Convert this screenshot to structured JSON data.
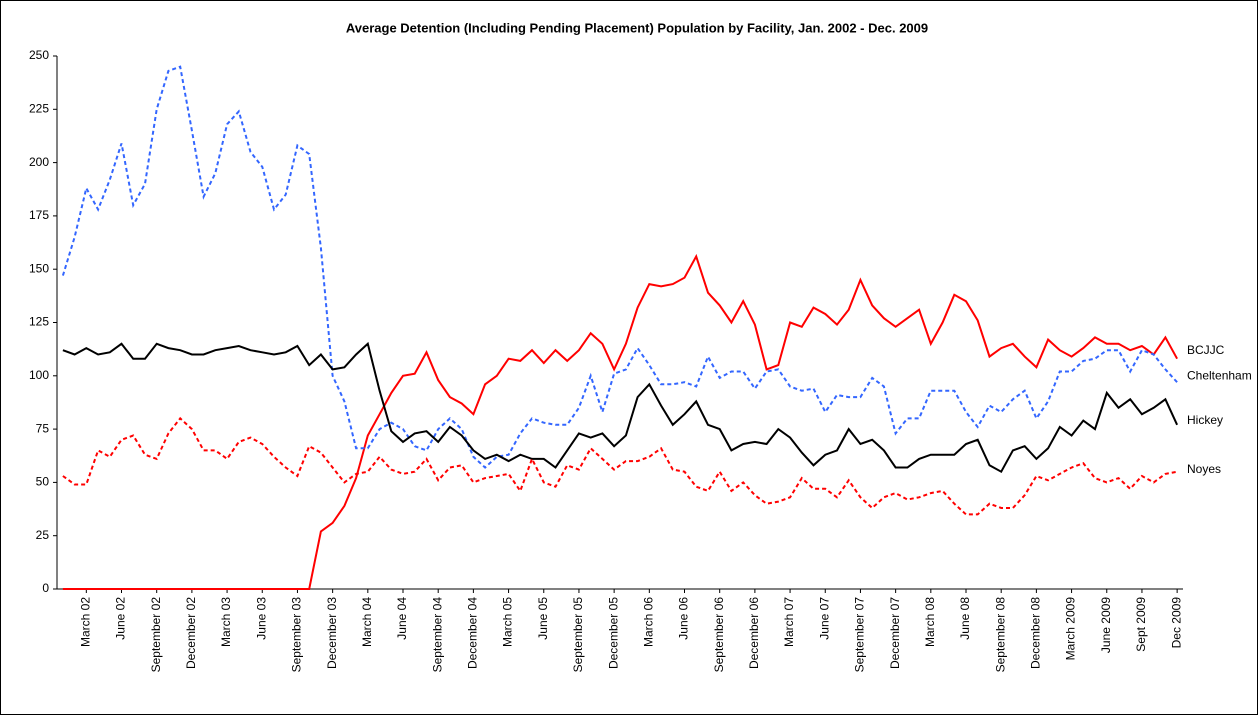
{
  "chart_data": {
    "type": "line",
    "title": "Average Detention (Including Pending Placement) Population by Facility, Jan. 2002 - Dec. 2009",
    "categories": [
      null,
      null,
      "March 02",
      null,
      null,
      "June 02",
      null,
      null,
      "September 02",
      null,
      null,
      "December 02",
      null,
      null,
      "March 03",
      null,
      null,
      "June 03",
      null,
      null,
      "September 03",
      null,
      null,
      "December 03",
      null,
      null,
      "March 04",
      null,
      null,
      "June 04",
      null,
      null,
      "September 04",
      null,
      null,
      "December 04",
      null,
      null,
      "March 05",
      null,
      null,
      "June 05",
      null,
      null,
      "September 05",
      null,
      null,
      "December 05",
      null,
      null,
      "March 06",
      null,
      null,
      "June 06",
      null,
      null,
      "September 06",
      null,
      null,
      "December 06",
      null,
      null,
      "March 07",
      null,
      null,
      "June 07",
      null,
      null,
      "September 07",
      null,
      null,
      "December 07",
      null,
      null,
      "March 08",
      null,
      null,
      "June 08",
      null,
      null,
      "September 08",
      null,
      null,
      "December 08",
      null,
      null,
      "March 2009",
      null,
      null,
      "June 2009",
      null,
      null,
      "Sept 2009",
      null,
      null,
      "Dec 2009"
    ],
    "series": [
      {
        "name": "BCJJC",
        "color": "#ff0000",
        "dashed": false,
        "values": [
          0,
          0,
          0,
          0,
          0,
          0,
          0,
          0,
          0,
          0,
          0,
          0,
          0,
          0,
          0,
          0,
          0,
          0,
          0,
          0,
          0,
          0,
          27,
          31,
          39,
          52,
          72,
          82,
          92,
          100,
          101,
          111,
          98,
          90,
          87,
          82,
          96,
          100,
          108,
          107,
          112,
          106,
          112,
          107,
          112,
          120,
          115,
          103,
          115,
          132,
          143,
          142,
          143,
          146,
          156,
          139,
          133,
          125,
          135,
          124,
          103,
          105,
          125,
          123,
          132,
          129,
          124,
          131,
          145,
          133,
          127,
          123,
          127,
          131,
          115,
          125,
          138,
          135,
          126,
          109,
          113,
          115,
          109,
          104,
          117,
          112,
          109,
          113,
          118,
          115,
          115,
          112,
          114,
          110,
          118,
          108
        ]
      },
      {
        "name": "Cheltenham",
        "color": "#3366ff",
        "dashed": true,
        "values": [
          147,
          165,
          188,
          178,
          192,
          209,
          180,
          190,
          225,
          243,
          245,
          215,
          184,
          195,
          218,
          224,
          205,
          198,
          178,
          185,
          208,
          204,
          160,
          100,
          88,
          66,
          66,
          75,
          78,
          75,
          67,
          65,
          75,
          80,
          75,
          62,
          57,
          62,
          63,
          73,
          80,
          78,
          77,
          77,
          85,
          100,
          83,
          101,
          103,
          113,
          105,
          96,
          96,
          97,
          95,
          109,
          99,
          102,
          102,
          94,
          102,
          103,
          95,
          93,
          94,
          83,
          91,
          90,
          90,
          99,
          95,
          73,
          80,
          80,
          93,
          93,
          93,
          83,
          76,
          86,
          83,
          89,
          93,
          80,
          88,
          102,
          102,
          107,
          108,
          112,
          112,
          102,
          112,
          110,
          103,
          97
        ]
      },
      {
        "name": "Hickey",
        "color": "#000000",
        "dashed": false,
        "values": [
          112,
          110,
          113,
          110,
          111,
          115,
          108,
          108,
          115,
          113,
          112,
          110,
          110,
          112,
          113,
          114,
          112,
          111,
          110,
          111,
          114,
          105,
          110,
          103,
          104,
          110,
          115,
          93,
          74,
          69,
          73,
          74,
          69,
          76,
          72,
          65,
          61,
          63,
          60,
          63,
          61,
          61,
          57,
          65,
          73,
          71,
          73,
          67,
          72,
          90,
          96,
          86,
          77,
          82,
          88,
          77,
          75,
          65,
          68,
          69,
          68,
          75,
          71,
          64,
          58,
          63,
          65,
          75,
          68,
          70,
          65,
          57,
          57,
          61,
          63,
          63,
          63,
          68,
          70,
          58,
          55,
          65,
          67,
          61,
          66,
          76,
          72,
          79,
          75,
          92,
          85,
          89,
          82,
          85,
          89,
          77
        ]
      },
      {
        "name": "Noyes",
        "color": "#ff0000",
        "dashed": true,
        "values": [
          53,
          49,
          49,
          65,
          62,
          70,
          72,
          63,
          61,
          73,
          80,
          75,
          65,
          65,
          61,
          69,
          71,
          68,
          62,
          57,
          53,
          67,
          64,
          57,
          50,
          54,
          55,
          62,
          56,
          54,
          55,
          61,
          51,
          57,
          58,
          50,
          52,
          53,
          54,
          46,
          61,
          50,
          48,
          58,
          56,
          66,
          61,
          56,
          60,
          60,
          62,
          66,
          56,
          55,
          48,
          46,
          55,
          46,
          50,
          44,
          40,
          41,
          43,
          52,
          47,
          47,
          43,
          51,
          43,
          38,
          43,
          45,
          42,
          43,
          45,
          46,
          40,
          35,
          35,
          40,
          38,
          38,
          44,
          53,
          51,
          54,
          57,
          59,
          52,
          50,
          52,
          47,
          53,
          50,
          54,
          55
        ]
      }
    ],
    "ylim": [
      0,
      250
    ],
    "yticks": [
      0,
      25,
      50,
      75,
      100,
      125,
      150,
      175,
      200,
      225,
      250
    ],
    "grid": false
  }
}
